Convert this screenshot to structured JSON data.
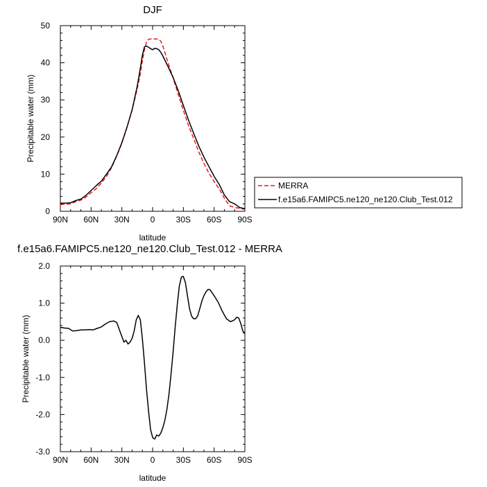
{
  "chart_data": [
    {
      "type": "line",
      "title": "DJF",
      "xlabel": "latitude",
      "ylabel": "Precipitable water (mm)",
      "xlim": [
        90,
        -90
      ],
      "ylim": [
        0,
        50
      ],
      "x_tick_values": [
        90,
        60,
        30,
        0,
        -30,
        -60,
        -90
      ],
      "x_tick_labels": [
        "90N",
        "60N",
        "30N",
        "0",
        "30S",
        "60S",
        "90S"
      ],
      "y_tick_values": [
        0,
        10,
        20,
        30,
        40,
        50
      ],
      "y_tick_labels": [
        "0",
        "10",
        "20",
        "30",
        "40",
        "50"
      ],
      "grid": false,
      "legend": {
        "placement": "right",
        "entries": [
          "MERRA",
          "f.e15a6.FAMIPC5.ne120_ne120.Club_Test.012"
        ]
      },
      "series": [
        {
          "name": "MERRA",
          "color": "#e8191f",
          "dash": "dashed",
          "x": [
            90,
            85,
            80,
            75,
            70,
            65,
            60,
            55,
            50,
            45,
            40,
            35,
            30,
            25,
            20,
            15,
            12,
            10,
            8,
            6,
            4,
            2,
            0,
            -2,
            -4,
            -6,
            -8,
            -10,
            -15,
            -20,
            -25,
            -30,
            -35,
            -40,
            -45,
            -50,
            -55,
            -60,
            -65,
            -70,
            -75,
            -80,
            -85,
            -90
          ],
          "y": [
            1.8,
            1.9,
            2.0,
            2.6,
            3.0,
            3.8,
            5.0,
            6.1,
            7.6,
            9.4,
            11.8,
            14.9,
            18.4,
            22.6,
            27.2,
            33.0,
            37.0,
            40.5,
            43.5,
            45.5,
            46.3,
            46.4,
            46.4,
            46.4,
            46.4,
            46.3,
            45.8,
            44.5,
            40.0,
            35.9,
            31.5,
            27.2,
            23.1,
            19.6,
            16.0,
            12.9,
            10.2,
            8.0,
            6.0,
            3.5,
            1.5,
            1.0,
            0.8,
            0.5
          ]
        },
        {
          "name": "f.e15a6.FAMIPC5.ne120_ne120.Club_Test.012",
          "color": "#000000",
          "dash": "solid",
          "x": [
            90,
            85,
            80,
            75,
            70,
            65,
            60,
            55,
            50,
            45,
            40,
            35,
            30,
            25,
            20,
            15,
            12,
            10,
            8,
            6,
            4,
            2,
            0,
            -2,
            -4,
            -6,
            -8,
            -10,
            -15,
            -20,
            -25,
            -30,
            -35,
            -40,
            -45,
            -50,
            -55,
            -60,
            -65,
            -70,
            -75,
            -80,
            -85,
            -90
          ],
          "y": [
            2.2,
            2.2,
            2.3,
            2.9,
            3.3,
            4.3,
            5.6,
            6.9,
            8.1,
            10.0,
            12.0,
            15.0,
            18.5,
            22.7,
            27.3,
            33.7,
            38.5,
            42.0,
            44.3,
            44.5,
            44.2,
            43.8,
            43.5,
            43.9,
            43.8,
            43.5,
            42.8,
            41.8,
            39.0,
            36.0,
            32.5,
            28.5,
            24.6,
            21.0,
            17.6,
            14.6,
            12.0,
            9.4,
            7.2,
            4.4,
            2.6,
            2.0,
            1.0,
            0.7
          ]
        }
      ]
    },
    {
      "type": "line",
      "title": "f.e15a6.FAMIPC5.ne120_ne120.Club_Test.012 - MERRA",
      "xlabel": "latitude",
      "ylabel": "Precipitable water (mm)",
      "xlim": [
        90,
        -90
      ],
      "ylim": [
        -3.0,
        2.0
      ],
      "x_tick_values": [
        90,
        60,
        30,
        0,
        -30,
        -60,
        -90
      ],
      "x_tick_labels": [
        "90N",
        "60N",
        "30N",
        "0",
        "30S",
        "60S",
        "90S"
      ],
      "y_tick_values": [
        -3.0,
        -2.0,
        -1.0,
        0.0,
        1.0,
        2.0
      ],
      "y_tick_labels": [
        "-3.0",
        "-2.0",
        "-1.0",
        "0.0",
        "1.0",
        "2.0"
      ],
      "grid": false,
      "series": [
        {
          "color": "#000000",
          "dash": "solid",
          "x": [
            90,
            86,
            82,
            78,
            74,
            70,
            66,
            62,
            58,
            54,
            50,
            46,
            42,
            38,
            35,
            32,
            30,
            28,
            26,
            24,
            22,
            20,
            18,
            16,
            14,
            12,
            10,
            8,
            6,
            4,
            2,
            0,
            -2,
            -4,
            -6,
            -8,
            -10,
            -12,
            -14,
            -16,
            -18,
            -20,
            -22,
            -24,
            -26,
            -28,
            -30,
            -32,
            -34,
            -36,
            -38,
            -40,
            -42,
            -44,
            -46,
            -48,
            -50,
            -52,
            -54,
            -56,
            -58,
            -60,
            -64,
            -68,
            -72,
            -76,
            -80,
            -82,
            -84,
            -86,
            -88,
            -90
          ],
          "y": [
            0.35,
            0.33,
            0.32,
            0.25,
            0.26,
            0.28,
            0.28,
            0.29,
            0.28,
            0.32,
            0.36,
            0.44,
            0.5,
            0.52,
            0.48,
            0.25,
            0.1,
            -0.05,
            0.0,
            -0.1,
            -0.05,
            0.05,
            0.25,
            0.55,
            0.67,
            0.55,
            0.05,
            -0.6,
            -1.3,
            -1.9,
            -2.4,
            -2.62,
            -2.66,
            -2.55,
            -2.58,
            -2.5,
            -2.35,
            -2.15,
            -1.85,
            -1.45,
            -0.9,
            -0.3,
            0.35,
            0.95,
            1.45,
            1.7,
            1.72,
            1.55,
            1.2,
            0.85,
            0.65,
            0.58,
            0.58,
            0.66,
            0.85,
            1.05,
            1.2,
            1.3,
            1.37,
            1.36,
            1.28,
            1.2,
            1.02,
            0.78,
            0.58,
            0.5,
            0.55,
            0.62,
            0.6,
            0.45,
            0.25,
            0.18
          ]
        }
      ]
    }
  ]
}
